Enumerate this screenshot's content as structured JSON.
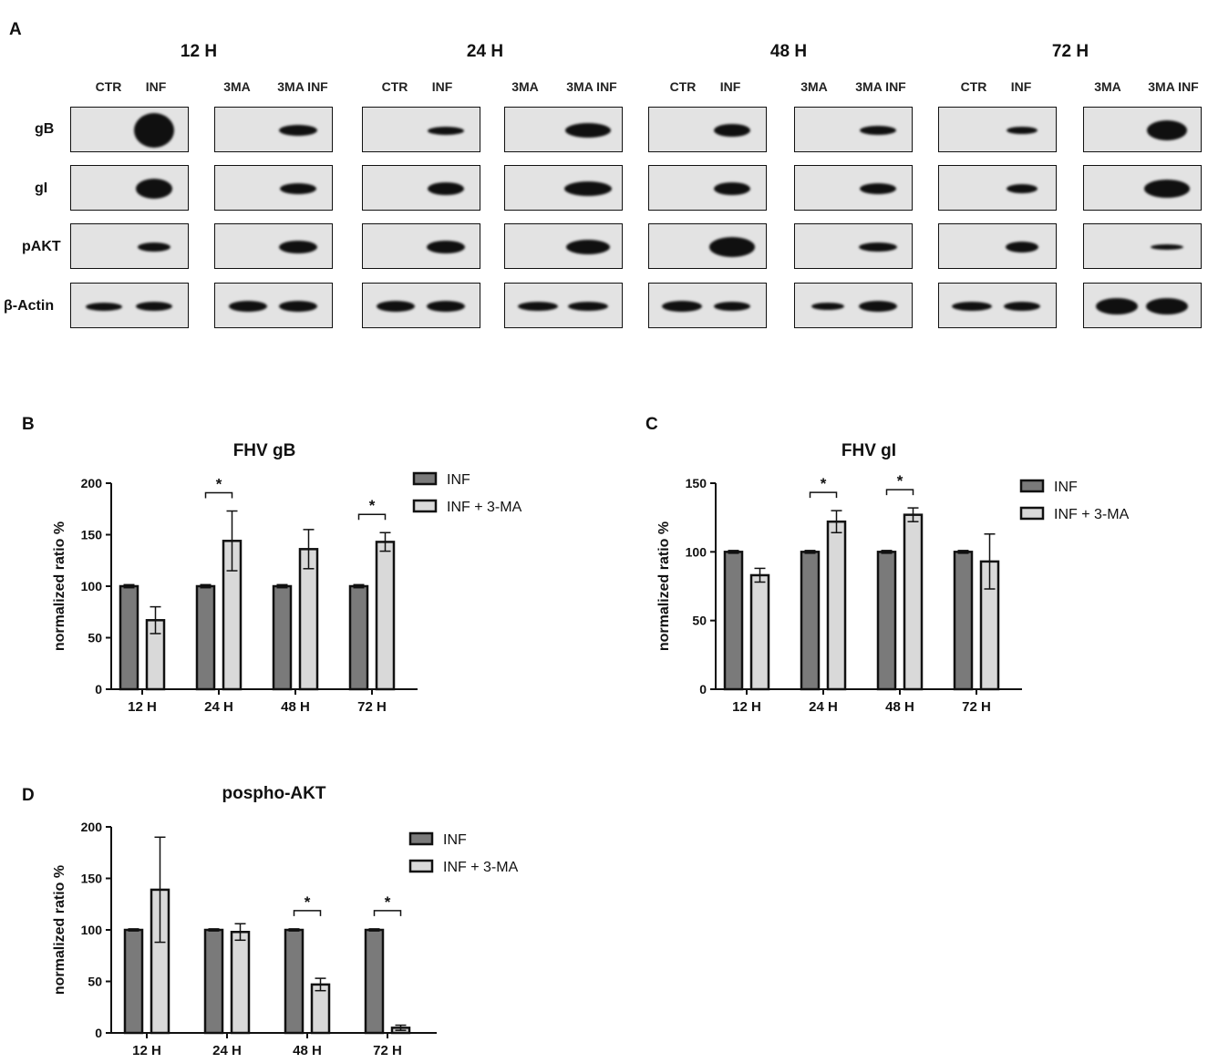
{
  "panel_a": {
    "letter": "A",
    "time_points": [
      "12 H",
      "24 H",
      "48 H",
      "72 H"
    ],
    "lane_groups": [
      [
        "CTR",
        "INF",
        "3MA",
        "3MA INF"
      ],
      [
        "CTR",
        "INF",
        "3MA",
        "3MA INF"
      ],
      [
        "CTR",
        "INF",
        "3MA",
        "3MA INF"
      ],
      [
        "CTR",
        "INF",
        "3MA",
        "3MA INF"
      ]
    ],
    "rows": [
      "gB",
      "gI",
      "pAKT",
      "β-Actin"
    ]
  },
  "chart_data": [
    {
      "panel": "B",
      "type": "bar",
      "title": "FHV gB",
      "ylabel": "normalized ratio %",
      "xlabel": "",
      "categories": [
        "12 H",
        "24 H",
        "48 H",
        "72 H"
      ],
      "ylim": [
        0,
        200
      ],
      "yticks": [
        0,
        50,
        100,
        150,
        200
      ],
      "legend_position": "top-right",
      "series": [
        {
          "name": "INF",
          "color": "#7a7a7a",
          "values": [
            100,
            100,
            100,
            100
          ],
          "errors": [
            1.5,
            1.5,
            1.5,
            1.5
          ]
        },
        {
          "name": "INF + 3-MA",
          "color": "#d9d9d9",
          "values": [
            67,
            144,
            136,
            143
          ],
          "errors": [
            13,
            29,
            19,
            9
          ]
        }
      ],
      "significance": [
        {
          "category": "24 H",
          "label": "*"
        },
        {
          "category": "72 H",
          "label": "*"
        }
      ]
    },
    {
      "panel": "C",
      "type": "bar",
      "title": "FHV gI",
      "ylabel": "normalized ratio %",
      "xlabel": "",
      "categories": [
        "12 H",
        "24 H",
        "48 H",
        "72 H"
      ],
      "ylim": [
        0,
        150
      ],
      "yticks": [
        0,
        50,
        100,
        150
      ],
      "legend_position": "top-right",
      "series": [
        {
          "name": "INF",
          "color": "#7a7a7a",
          "values": [
            100,
            100,
            100,
            100
          ],
          "errors": [
            1,
            1,
            1,
            1
          ]
        },
        {
          "name": "INF + 3-MA",
          "color": "#d9d9d9",
          "values": [
            83,
            122,
            127,
            93
          ],
          "errors": [
            5,
            8,
            5,
            20
          ]
        }
      ],
      "significance": [
        {
          "category": "24 H",
          "label": "*"
        },
        {
          "category": "48 H",
          "label": "*"
        }
      ]
    },
    {
      "panel": "D",
      "type": "bar",
      "title": "pospho-AKT",
      "ylabel": "normalized ratio %",
      "xlabel": "",
      "categories": [
        "12 H",
        "24 H",
        "48 H",
        "72 H"
      ],
      "ylim": [
        0,
        200
      ],
      "yticks": [
        0,
        50,
        100,
        150,
        200
      ],
      "legend_position": "top-right",
      "series": [
        {
          "name": "INF",
          "color": "#7a7a7a",
          "values": [
            100,
            100,
            100,
            100
          ],
          "errors": [
            1,
            1,
            1,
            1
          ]
        },
        {
          "name": "INF + 3-MA",
          "color": "#d9d9d9",
          "values": [
            139,
            98,
            47,
            5
          ],
          "errors": [
            51,
            8,
            6,
            2.5
          ]
        }
      ],
      "significance": [
        {
          "category": "48 H",
          "label": "*"
        },
        {
          "category": "72 H",
          "label": "*"
        }
      ]
    }
  ]
}
